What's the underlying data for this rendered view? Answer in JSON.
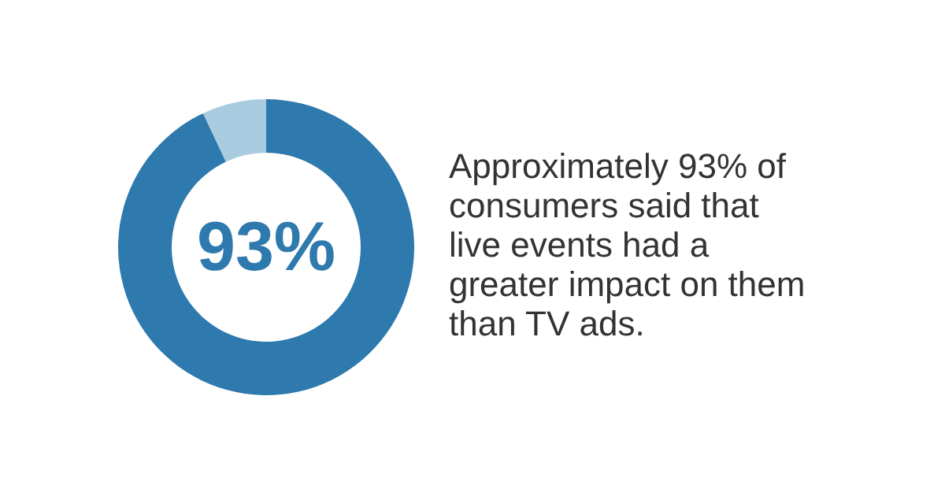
{
  "chart_data": {
    "type": "donut",
    "categories": [
      null,
      null
    ],
    "values": [
      93,
      7
    ],
    "colors": [
      "#2e79ad",
      "#a9cbe0"
    ],
    "value_labels": [
      "93%",
      null
    ],
    "annotations": [
      "Approximately 93% of consumers said that live events had a greater impact on them than TV ads."
    ]
  }
}
